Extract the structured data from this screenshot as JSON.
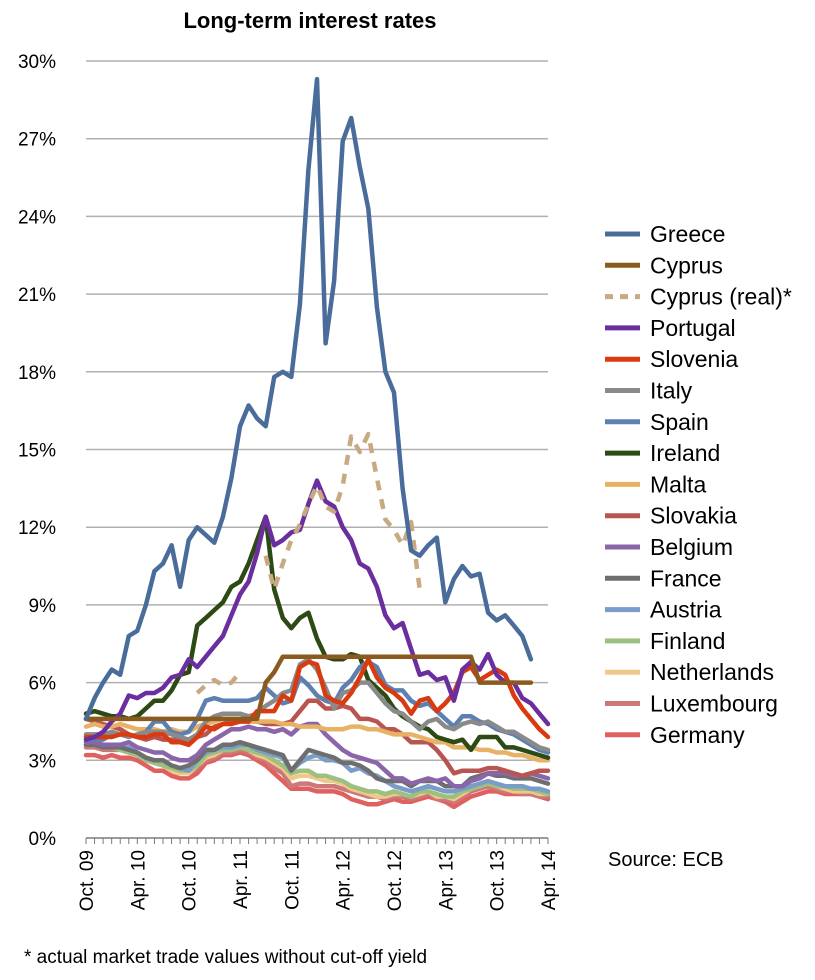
{
  "chart_data": {
    "type": "line",
    "title": "Long-term interest rates",
    "source": "Source: ECB",
    "footnote": "* actual market trade values without cut-off yield",
    "ylim": [
      0,
      30
    ],
    "y_tick_labels": [
      "0%",
      "3%",
      "6%",
      "9%",
      "12%",
      "15%",
      "18%",
      "21%",
      "24%",
      "27%",
      "30%"
    ],
    "y_tick_values": [
      0,
      3,
      6,
      9,
      12,
      15,
      18,
      21,
      24,
      27,
      30
    ],
    "x_tick_labels": [
      "Oct. 09",
      "Apr. 10",
      "Oct. 10",
      "Apr. 11",
      "Oct. 11",
      "Apr. 12",
      "Oct. 12",
      "Apr. 13",
      "Oct. 13",
      "Apr. 14"
    ],
    "x": [
      "Oct. 09",
      "Nov. 09",
      "Dec. 09",
      "Jan. 10",
      "Feb. 10",
      "Mar. 10",
      "Apr. 10",
      "May 10",
      "Jun. 10",
      "Jul. 10",
      "Aug. 10",
      "Sep. 10",
      "Oct. 10",
      "Nov. 10",
      "Dec. 10",
      "Jan. 11",
      "Feb. 11",
      "Mar. 11",
      "Apr. 11",
      "May 11",
      "Jun. 11",
      "Jul. 11",
      "Aug. 11",
      "Sep. 11",
      "Oct. 11",
      "Nov. 11",
      "Dec. 11",
      "Jan. 12",
      "Feb. 12",
      "Mar. 12",
      "Apr. 12",
      "May 12",
      "Jun. 12",
      "Jul. 12",
      "Aug. 12",
      "Sep. 12",
      "Oct. 12",
      "Nov. 12",
      "Dec. 12",
      "Jan. 13",
      "Feb. 13",
      "Mar. 13",
      "Apr. 13",
      "May 13",
      "Jun. 13",
      "Jul. 13",
      "Aug. 13",
      "Sep. 13",
      "Oct. 13",
      "Nov. 13",
      "Dec. 13",
      "Jan. 14",
      "Feb. 14",
      "Mar. 14",
      "Apr. 14"
    ],
    "grid": true,
    "legend_position": "right",
    "series": [
      {
        "name": "Greece",
        "color": "#4a6c9b",
        "dashed": false,
        "values": [
          4.6,
          5.4,
          6.0,
          6.5,
          6.3,
          7.8,
          8.0,
          9.0,
          10.3,
          10.6,
          11.3,
          9.7,
          11.5,
          12.0,
          11.7,
          11.4,
          12.4,
          13.9,
          15.9,
          16.7,
          16.2,
          15.9,
          17.8,
          18.0,
          17.8,
          20.6,
          25.8,
          29.3,
          19.1,
          21.5,
          26.9,
          27.8,
          25.9,
          24.3,
          20.5,
          18.0,
          17.2,
          13.5,
          11.1,
          10.9,
          11.3,
          11.6,
          9.1,
          10.0,
          10.5,
          10.1,
          10.2,
          8.7,
          8.4,
          8.6,
          8.2,
          7.8,
          6.9,
          null,
          null
        ]
      },
      {
        "name": "Cyprus",
        "color": "#8a5a1e",
        "dashed": false,
        "values": [
          4.6,
          4.6,
          4.6,
          4.6,
          4.6,
          4.6,
          4.6,
          4.6,
          4.6,
          4.6,
          4.6,
          4.6,
          4.6,
          4.6,
          4.6,
          4.6,
          4.6,
          4.6,
          4.6,
          4.6,
          4.6,
          6.0,
          6.4,
          7.0,
          7.0,
          7.0,
          7.0,
          7.0,
          7.0,
          7.0,
          7.0,
          7.0,
          7.0,
          7.0,
          7.0,
          7.0,
          7.0,
          7.0,
          7.0,
          7.0,
          7.0,
          7.0,
          7.0,
          7.0,
          7.0,
          7.0,
          6.0,
          6.0,
          6.0,
          6.0,
          6.0,
          6.0,
          6.0,
          null,
          null
        ]
      },
      {
        "name": "Cyprus (real)*",
        "color": "#c8aa82",
        "dashed": true,
        "values": [
          null,
          null,
          null,
          null,
          null,
          null,
          null,
          null,
          null,
          null,
          null,
          null,
          null,
          5.6,
          5.9,
          6.1,
          5.9,
          6.0,
          6.4,
          null,
          null,
          10.9,
          9.6,
          10.6,
          11.5,
          12.1,
          12.9,
          13.6,
          12.8,
          12.6,
          13.6,
          15.5,
          14.9,
          15.6,
          13.9,
          12.3,
          11.9,
          11.3,
          12.2,
          9.6,
          null,
          null,
          null,
          null,
          null,
          null,
          null,
          null,
          null,
          null,
          null,
          null,
          null,
          null,
          null
        ]
      },
      {
        "name": "Portugal",
        "color": "#6b2e9e",
        "dashed": false,
        "values": [
          3.8,
          3.9,
          4.1,
          4.5,
          4.8,
          5.5,
          5.4,
          5.6,
          5.6,
          5.8,
          6.2,
          6.3,
          6.9,
          6.6,
          7.0,
          7.4,
          7.8,
          8.6,
          9.4,
          9.9,
          11.0,
          12.4,
          11.3,
          11.5,
          11.8,
          11.9,
          12.9,
          13.8,
          13.0,
          12.8,
          12.0,
          11.5,
          10.6,
          10.4,
          9.7,
          8.6,
          8.1,
          8.3,
          7.3,
          6.3,
          6.4,
          6.1,
          6.2,
          5.3,
          6.5,
          6.8,
          6.5,
          7.1,
          6.3,
          6.0,
          6.0,
          5.4,
          5.2,
          4.8,
          4.4
        ]
      },
      {
        "name": "Slovenia",
        "color": "#d93a10",
        "dashed": false,
        "values": [
          3.9,
          3.9,
          3.9,
          3.9,
          4.0,
          4.0,
          3.9,
          3.9,
          4.0,
          4.0,
          3.7,
          3.7,
          3.6,
          3.9,
          4.3,
          4.2,
          4.4,
          4.4,
          4.5,
          4.5,
          4.9,
          4.9,
          4.9,
          5.5,
          5.3,
          6.6,
          6.8,
          6.7,
          5.5,
          5.3,
          5.2,
          5.6,
          6.2,
          6.9,
          6.2,
          5.8,
          5.6,
          5.3,
          4.8,
          5.3,
          5.4,
          4.9,
          5.2,
          5.6,
          6.4,
          6.6,
          6.1,
          6.3,
          6.5,
          6.3,
          5.5,
          5.0,
          4.6,
          4.2,
          3.9
        ]
      },
      {
        "name": "Italy",
        "color": "#8a8a8a",
        "dashed": false,
        "values": [
          4.0,
          4.0,
          4.0,
          4.1,
          4.0,
          3.9,
          4.0,
          4.1,
          4.1,
          4.1,
          4.0,
          3.9,
          3.8,
          4.0,
          4.5,
          4.7,
          4.8,
          4.8,
          4.8,
          4.7,
          4.8,
          5.1,
          5.3,
          5.6,
          5.7,
          6.7,
          6.9,
          6.5,
          5.8,
          5.0,
          5.6,
          5.7,
          6.0,
          6.0,
          5.6,
          5.2,
          4.9,
          4.8,
          4.5,
          4.2,
          4.5,
          4.6,
          4.3,
          4.2,
          4.4,
          4.5,
          4.4,
          4.5,
          4.3,
          4.1,
          4.1,
          3.9,
          3.7,
          3.5,
          3.4
        ]
      },
      {
        "name": "Spain",
        "color": "#5d80b0",
        "dashed": false,
        "values": [
          3.8,
          3.8,
          3.8,
          4.0,
          4.0,
          4.0,
          3.9,
          4.1,
          4.5,
          4.5,
          4.1,
          4.0,
          4.1,
          4.6,
          5.3,
          5.4,
          5.3,
          5.3,
          5.3,
          5.3,
          5.4,
          5.8,
          5.5,
          5.2,
          5.3,
          6.2,
          5.9,
          5.5,
          5.3,
          5.2,
          5.8,
          6.1,
          6.6,
          6.8,
          6.6,
          5.9,
          5.7,
          5.7,
          5.3,
          5.1,
          5.2,
          4.9,
          4.6,
          4.3,
          4.7,
          4.7,
          4.5,
          4.4,
          4.2,
          4.1,
          4.0,
          3.8,
          3.6,
          3.4,
          3.3
        ]
      },
      {
        "name": "Ireland",
        "color": "#2d4a15",
        "dashed": false,
        "values": [
          4.8,
          4.9,
          4.8,
          4.7,
          4.7,
          4.6,
          4.7,
          5.0,
          5.3,
          5.3,
          5.7,
          6.3,
          6.4,
          8.2,
          8.5,
          8.8,
          9.1,
          9.7,
          9.9,
          10.6,
          11.5,
          12.4,
          9.6,
          8.5,
          8.1,
          8.5,
          8.7,
          7.7,
          7.0,
          6.9,
          6.9,
          7.1,
          7.0,
          6.1,
          5.8,
          5.5,
          5.0,
          4.7,
          4.5,
          4.3,
          4.2,
          3.9,
          3.8,
          3.7,
          3.8,
          3.4,
          3.9,
          3.9,
          3.9,
          3.5,
          3.5,
          3.4,
          3.3,
          3.2,
          3.1
        ]
      },
      {
        "name": "Malta",
        "color": "#e8b266",
        "dashed": false,
        "values": [
          4.3,
          4.4,
          4.3,
          4.3,
          4.4,
          4.3,
          4.2,
          4.2,
          4.2,
          4.1,
          4.2,
          4.1,
          4.1,
          4.3,
          4.4,
          4.5,
          4.6,
          4.6,
          4.6,
          4.5,
          4.5,
          4.5,
          4.5,
          4.4,
          4.4,
          4.3,
          4.3,
          4.3,
          4.2,
          4.2,
          4.2,
          4.3,
          4.3,
          4.2,
          4.2,
          4.1,
          4.0,
          4.0,
          4.0,
          3.9,
          3.8,
          3.7,
          3.7,
          3.5,
          3.5,
          3.5,
          3.4,
          3.4,
          3.3,
          3.3,
          3.2,
          3.2,
          3.1,
          3.0,
          3.0
        ]
      },
      {
        "name": "Slovakia",
        "color": "#b85550",
        "dashed": false,
        "values": [
          4.6,
          4.5,
          4.4,
          4.3,
          4.2,
          4.0,
          3.9,
          3.8,
          3.9,
          3.8,
          3.8,
          3.8,
          3.7,
          3.9,
          4.0,
          4.3,
          4.4,
          4.5,
          4.5,
          4.5,
          4.5,
          4.4,
          4.4,
          4.4,
          4.5,
          4.9,
          5.3,
          5.3,
          5.0,
          5.0,
          5.1,
          5.0,
          4.6,
          4.6,
          4.5,
          4.2,
          4.2,
          4.0,
          3.7,
          3.7,
          3.7,
          3.4,
          3.0,
          2.5,
          2.6,
          2.6,
          2.6,
          2.7,
          2.7,
          2.6,
          2.5,
          2.4,
          2.5,
          2.6,
          2.6
        ]
      },
      {
        "name": "Belgium",
        "color": "#8a65aa",
        "dashed": false,
        "values": [
          3.7,
          3.7,
          3.6,
          3.6,
          3.6,
          3.7,
          3.5,
          3.4,
          3.3,
          3.3,
          3.1,
          3.0,
          3.0,
          3.2,
          3.6,
          3.8,
          4.0,
          4.2,
          4.2,
          4.3,
          4.2,
          4.2,
          4.1,
          4.2,
          4.0,
          4.3,
          4.4,
          4.4,
          4.0,
          3.7,
          3.4,
          3.2,
          3.1,
          3.0,
          2.9,
          2.6,
          2.3,
          2.3,
          2.1,
          2.2,
          2.3,
          2.2,
          2.3,
          2.0,
          2.0,
          2.2,
          2.3,
          2.5,
          2.5,
          2.5,
          2.4,
          2.4,
          2.5,
          2.4,
          2.3
        ]
      },
      {
        "name": "France",
        "color": "#6e6e6e",
        "dashed": false,
        "values": [
          3.6,
          3.6,
          3.5,
          3.5,
          3.5,
          3.4,
          3.3,
          3.1,
          3.0,
          3.0,
          2.8,
          2.7,
          2.8,
          3.0,
          3.4,
          3.4,
          3.6,
          3.6,
          3.7,
          3.6,
          3.5,
          3.4,
          3.3,
          3.2,
          2.6,
          3.0,
          3.4,
          3.3,
          3.2,
          3.1,
          2.9,
          2.9,
          2.8,
          2.6,
          2.3,
          2.2,
          2.2,
          2.2,
          2.0,
          2.2,
          2.2,
          2.2,
          2.0,
          2.0,
          2.0,
          2.3,
          2.4,
          2.5,
          2.4,
          2.4,
          2.3,
          2.3,
          2.3,
          2.2,
          2.1
        ]
      },
      {
        "name": "Austria",
        "color": "#7a9cc8",
        "dashed": false,
        "values": [
          3.7,
          3.6,
          3.5,
          3.5,
          3.5,
          3.5,
          3.3,
          3.1,
          3.0,
          3.0,
          2.8,
          2.7,
          2.6,
          3.0,
          3.3,
          3.4,
          3.5,
          3.5,
          3.6,
          3.6,
          3.4,
          3.3,
          3.2,
          3.1,
          2.6,
          2.9,
          3.1,
          3.2,
          3.0,
          3.0,
          2.9,
          2.6,
          2.7,
          2.5,
          2.4,
          2.2,
          2.0,
          1.9,
          1.8,
          1.9,
          2.0,
          1.9,
          1.8,
          1.8,
          1.9,
          2.0,
          2.1,
          2.2,
          2.1,
          2.0,
          2.0,
          2.0,
          1.9,
          1.9,
          1.8
        ]
      },
      {
        "name": "Finland",
        "color": "#9cc080",
        "dashed": false,
        "values": [
          3.6,
          3.6,
          3.5,
          3.5,
          3.4,
          3.3,
          3.2,
          3.0,
          2.9,
          2.8,
          2.7,
          2.6,
          2.6,
          2.8,
          3.2,
          3.3,
          3.4,
          3.4,
          3.5,
          3.4,
          3.3,
          3.2,
          3.0,
          2.8,
          2.5,
          2.6,
          2.6,
          2.4,
          2.4,
          2.3,
          2.2,
          2.0,
          1.9,
          1.8,
          1.8,
          1.7,
          1.8,
          1.7,
          1.6,
          1.8,
          1.8,
          1.7,
          1.6,
          1.6,
          1.8,
          1.9,
          2.0,
          2.1,
          2.0,
          2.0,
          1.9,
          1.9,
          1.9,
          1.8,
          1.7
        ]
      },
      {
        "name": "Netherlands",
        "color": "#f0c888",
        "dashed": false,
        "values": [
          3.6,
          3.6,
          3.5,
          3.5,
          3.4,
          3.3,
          3.2,
          3.0,
          2.9,
          2.8,
          2.6,
          2.5,
          2.5,
          2.8,
          3.1,
          3.2,
          3.4,
          3.4,
          3.5,
          3.4,
          3.2,
          3.1,
          2.9,
          2.7,
          2.3,
          2.4,
          2.4,
          2.3,
          2.2,
          2.2,
          2.1,
          1.9,
          1.8,
          1.7,
          1.6,
          1.6,
          1.7,
          1.7,
          1.6,
          1.7,
          1.8,
          1.6,
          1.6,
          1.5,
          1.7,
          1.9,
          2.0,
          2.1,
          2.0,
          1.9,
          1.8,
          1.8,
          1.8,
          1.7,
          1.7
        ]
      },
      {
        "name": "Luxembourg",
        "color": "#cc7878",
        "dashed": false,
        "values": [
          3.5,
          3.5,
          3.4,
          3.4,
          3.4,
          3.3,
          3.2,
          3.0,
          2.9,
          2.8,
          2.6,
          2.5,
          2.5,
          2.7,
          3.0,
          3.1,
          3.3,
          3.3,
          3.4,
          3.3,
          3.1,
          3.0,
          2.7,
          2.5,
          2.0,
          2.1,
          2.1,
          2.0,
          2.0,
          2.0,
          1.9,
          1.8,
          1.7,
          1.6,
          1.6,
          1.5,
          1.6,
          1.6,
          1.5,
          1.6,
          1.7,
          1.5,
          1.5,
          1.4,
          1.6,
          1.8,
          1.9,
          2.0,
          1.9,
          1.8,
          1.8,
          1.7,
          1.7,
          1.6,
          1.6
        ]
      },
      {
        "name": "Germany",
        "color": "#e06060",
        "dashed": false,
        "values": [
          3.2,
          3.2,
          3.1,
          3.2,
          3.1,
          3.1,
          3.0,
          2.8,
          2.6,
          2.6,
          2.4,
          2.3,
          2.3,
          2.5,
          2.9,
          3.0,
          3.2,
          3.2,
          3.3,
          3.2,
          3.0,
          2.8,
          2.5,
          2.2,
          1.9,
          1.9,
          1.9,
          1.8,
          1.8,
          1.8,
          1.7,
          1.5,
          1.4,
          1.3,
          1.3,
          1.4,
          1.5,
          1.4,
          1.4,
          1.5,
          1.6,
          1.5,
          1.4,
          1.2,
          1.4,
          1.6,
          1.7,
          1.8,
          1.8,
          1.7,
          1.7,
          1.7,
          1.7,
          1.6,
          1.5
        ]
      }
    ]
  }
}
